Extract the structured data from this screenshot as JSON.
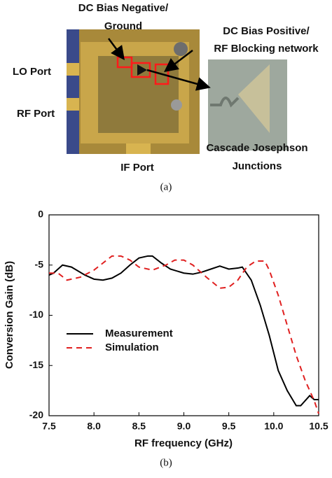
{
  "figure": {
    "label_neg": [
      "DC Bias Negative/",
      "Ground"
    ],
    "label_pos": [
      "DC Bias Positive/",
      "RF Blocking network"
    ],
    "lo_port": "LO Port",
    "rf_port": "RF Port",
    "if_port": "IF Port",
    "junctions": [
      "Cascade Josephson",
      "Junctions"
    ],
    "caption_a": "(a)",
    "caption_b": "(b)"
  },
  "chart_data": {
    "type": "line",
    "xlabel": "RF frequency (GHz)",
    "ylabel": "Conversion Gain (dB)",
    "xlim": [
      7.5,
      10.5
    ],
    "ylim": [
      -20,
      0
    ],
    "xticks": [
      7.5,
      {
        "value": 8,
        "label": "8.0"
      },
      8.5,
      {
        "value": 9,
        "label": "9.0"
      },
      9.5,
      {
        "value": 10,
        "label": "10.0"
      },
      10.5
    ],
    "yticks": [
      0,
      -5,
      -10,
      -15,
      -20
    ],
    "legend": "center-left",
    "series": [
      {
        "name": "Measurement",
        "color": "#000000",
        "dash": "solid",
        "x": [
          7.5,
          7.55,
          7.65,
          7.75,
          7.9,
          8.0,
          8.1,
          8.2,
          8.3,
          8.4,
          8.5,
          8.6,
          8.65,
          8.75,
          8.85,
          9.0,
          9.1,
          9.2,
          9.3,
          9.4,
          9.5,
          9.6,
          9.65,
          9.75,
          9.85,
          9.95,
          10.05,
          10.15,
          10.25,
          10.3,
          10.4,
          10.45,
          10.5
        ],
        "values": [
          -6.0,
          -5.8,
          -5.0,
          -5.2,
          -6.0,
          -6.4,
          -6.5,
          -6.3,
          -5.8,
          -5.0,
          -4.3,
          -4.1,
          -4.1,
          -4.8,
          -5.4,
          -5.8,
          -5.9,
          -5.7,
          -5.4,
          -5.1,
          -5.4,
          -5.3,
          -5.2,
          -6.5,
          -9.0,
          -12.0,
          -15.5,
          -17.5,
          -19.0,
          -19.0,
          -18.0,
          -18.4,
          -18.4
        ]
      },
      {
        "name": "Simulation",
        "color": "#e02020",
        "dash": "dashed",
        "x": [
          7.5,
          7.6,
          7.7,
          7.85,
          8.0,
          8.1,
          8.2,
          8.3,
          8.4,
          8.5,
          8.65,
          8.8,
          8.9,
          9.0,
          9.1,
          9.25,
          9.4,
          9.5,
          9.6,
          9.7,
          9.8,
          9.9,
          9.95,
          10.05,
          10.15,
          10.25,
          10.35,
          10.45,
          10.5
        ],
        "values": [
          -5.8,
          -5.8,
          -6.5,
          -6.2,
          -5.5,
          -4.8,
          -4.1,
          -4.1,
          -4.5,
          -5.2,
          -5.5,
          -5.0,
          -4.5,
          -4.5,
          -5.0,
          -6.2,
          -7.3,
          -7.2,
          -6.5,
          -5.2,
          -4.6,
          -4.6,
          -5.5,
          -8.0,
          -11.0,
          -14.0,
          -16.5,
          -18.5,
          -19.8
        ]
      }
    ]
  }
}
